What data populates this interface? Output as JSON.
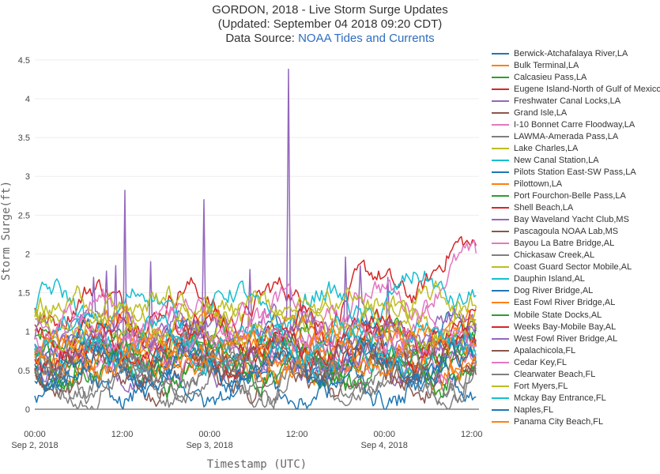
{
  "title": {
    "line1": "GORDON, 2018 - Live Storm Surge Updates",
    "line2": "(Updated: September 04 2018 09:20 CDT)",
    "source_prefix": "Data Source: ",
    "source_link": "NOAA Tides and Currents"
  },
  "chart_data": {
    "type": "line",
    "title": "GORDON, 2018 - Live Storm Surge Updates",
    "xlabel": "Timestamp (UTC)",
    "ylabel": "Storm Surge(ft)",
    "ylim": [
      0,
      4.6
    ],
    "xlim_hours": [
      0,
      61
    ],
    "y_ticks": [
      "0",
      "0.5",
      "1",
      "1.5",
      "2",
      "2.5",
      "3",
      "3.5",
      "4",
      "4.5"
    ],
    "x_ticks": [
      {
        "hour": 0,
        "line1": "00:00",
        "line2": "Sep 2, 2018"
      },
      {
        "hour": 12,
        "line1": "12:00",
        "line2": ""
      },
      {
        "hour": 24,
        "line1": "00:00",
        "line2": "Sep 3, 2018"
      },
      {
        "hour": 36,
        "line1": "12:00",
        "line2": ""
      },
      {
        "hour": 48,
        "line1": "00:00",
        "line2": "Sep 4, 2018"
      },
      {
        "hour": 60,
        "line1": "12:00",
        "line2": ""
      }
    ],
    "legend_placement": "right",
    "series": [
      {
        "name": "Berwick-Atchafalaya River,LA",
        "color": "#1f77b4",
        "base": 0.85,
        "spikes": []
      },
      {
        "name": "Bulk Terminal,LA",
        "color": "#ff7f0e",
        "base": 0.75,
        "spikes": []
      },
      {
        "name": "Calcasieu Pass,LA",
        "color": "#2ca02c",
        "base": 0.6,
        "spikes": []
      },
      {
        "name": "Eugene Island-North of Gulf of Mexico,LA",
        "color": "#d62728",
        "base": 1.35,
        "spikes": [],
        "trend_end": 2.0
      },
      {
        "name": "Freshwater Canal Locks,LA",
        "color": "#9467bd",
        "base": 1.0,
        "spikes": [
          [
            12.3,
            2.82
          ],
          [
            23.3,
            2.7
          ],
          [
            34.8,
            4.38
          ],
          [
            16.0,
            1.9
          ],
          [
            11.2,
            1.85
          ],
          [
            9.9,
            1.78
          ],
          [
            8.0,
            1.7
          ],
          [
            29.5,
            1.8
          ],
          [
            42.7,
            1.96
          ],
          [
            44.8,
            1.85
          ],
          [
            48.5,
            1.7
          ]
        ]
      },
      {
        "name": "Grand Isle,LA",
        "color": "#8c564b",
        "base": 0.7,
        "spikes": []
      },
      {
        "name": "I-10 Bonnet Carre Floodway,LA",
        "color": "#e377c2",
        "base": 1.2,
        "spikes": [],
        "trend_end": 1.8
      },
      {
        "name": "LAWMA-Amerada Pass,LA",
        "color": "#7f7f7f",
        "base": 0.5,
        "spikes": []
      },
      {
        "name": "Lake Charles,LA",
        "color": "#bcbd22",
        "base": 1.1,
        "spikes": []
      },
      {
        "name": "New Canal Station,LA",
        "color": "#17becf",
        "base": 1.3,
        "spikes": [],
        "trend_end": 1.65
      },
      {
        "name": "Pilots Station East-SW Pass,LA",
        "color": "#1f77b4",
        "base": 0.55,
        "spikes": []
      },
      {
        "name": "Pilottown,LA",
        "color": "#ff7f0e",
        "base": 0.9,
        "spikes": []
      },
      {
        "name": "Port Fourchon-Belle Pass,LA",
        "color": "#2ca02c",
        "base": 0.8,
        "spikes": []
      },
      {
        "name": "Shell Beach,LA",
        "color": "#d62728",
        "base": 0.95,
        "spikes": []
      },
      {
        "name": "Bay Waveland Yacht Club,MS",
        "color": "#9467bd",
        "base": 0.65,
        "spikes": []
      },
      {
        "name": "Pascagoula NOAA Lab,MS",
        "color": "#8c564b",
        "base": 0.45,
        "spikes": []
      },
      {
        "name": "Bayou La Batre Bridge,AL",
        "color": "#e377c2",
        "base": 0.7,
        "spikes": []
      },
      {
        "name": "Chickasaw Creek,AL",
        "color": "#7f7f7f",
        "base": 0.35,
        "spikes": []
      },
      {
        "name": "Coast Guard Sector Mobile,AL",
        "color": "#bcbd22",
        "base": 1.25,
        "spikes": []
      },
      {
        "name": "Dauphin Island,AL",
        "color": "#17becf",
        "base": 0.75,
        "spikes": []
      },
      {
        "name": "Dog River Bridge,AL",
        "color": "#1f77b4",
        "base": 0.3,
        "spikes": []
      },
      {
        "name": "East Fowl River Bridge,AL",
        "color": "#ff7f0e",
        "base": 0.65,
        "spikes": []
      },
      {
        "name": "Mobile State Docks,AL",
        "color": "#2ca02c",
        "base": 0.55,
        "spikes": []
      },
      {
        "name": "Weeks Bay-Mobile Bay,AL",
        "color": "#d62728",
        "base": 0.8,
        "spikes": []
      },
      {
        "name": "West Fowl River Bridge,AL",
        "color": "#9467bd",
        "base": 0.9,
        "spikes": []
      },
      {
        "name": "Apalachicola,FL",
        "color": "#8c564b",
        "base": 0.6,
        "spikes": []
      },
      {
        "name": "Cedar Key,FL",
        "color": "#e377c2",
        "base": 1.0,
        "spikes": []
      },
      {
        "name": "Clearwater Beach,FL",
        "color": "#7f7f7f",
        "base": 0.4,
        "spikes": []
      },
      {
        "name": "Fort Myers,FL",
        "color": "#bcbd22",
        "base": 1.15,
        "spikes": []
      },
      {
        "name": "Mckay Bay Entrance,FL",
        "color": "#17becf",
        "base": 0.85,
        "spikes": []
      },
      {
        "name": "Naples,FL",
        "color": "#1f77b4",
        "base": 0.5,
        "spikes": []
      },
      {
        "name": "Panama City Beach,FL",
        "color": "#ff7f0e",
        "base": 0.7,
        "spikes": []
      }
    ]
  }
}
